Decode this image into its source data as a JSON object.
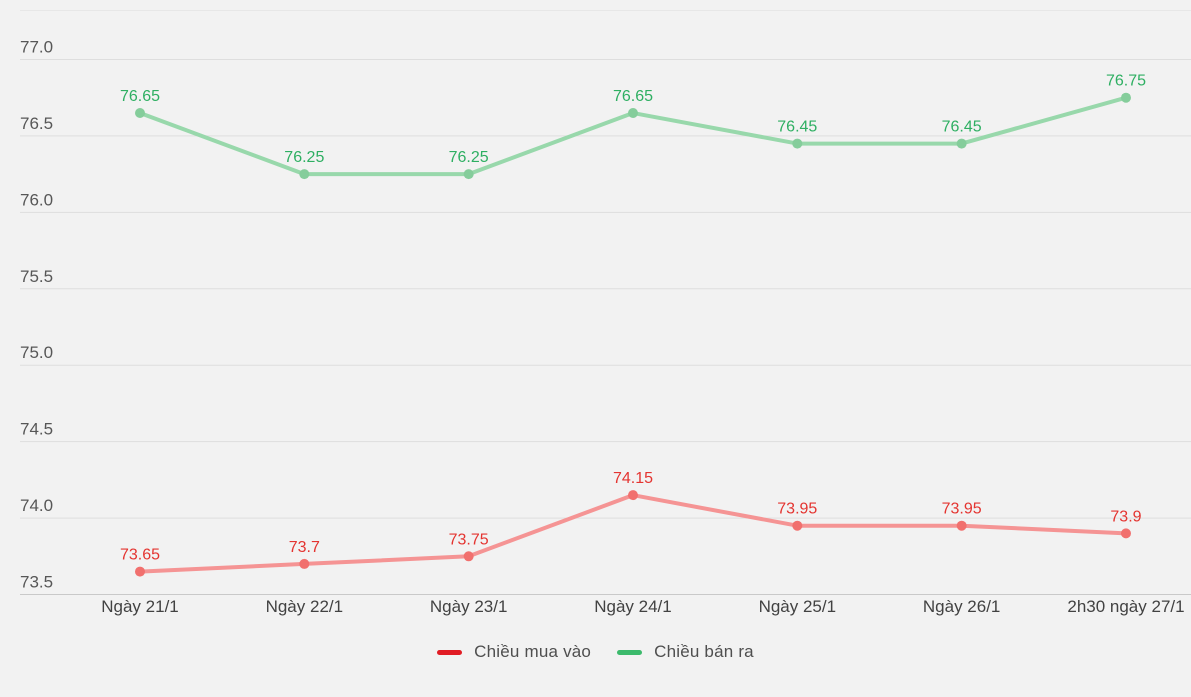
{
  "chart_data": {
    "type": "line",
    "title": "",
    "categories": [
      "Ngày 21/1",
      "Ngày 22/1",
      "Ngày 23/1",
      "Ngày 24/1",
      "Ngày 25/1",
      "Ngày 26/1",
      "2h30 ngày 27/1"
    ],
    "series": [
      {
        "name": "Chiều mua vào",
        "values": [
          73.65,
          73.7,
          73.75,
          74.15,
          73.95,
          73.95,
          73.9
        ],
        "line_color": "#f59494",
        "point_color": "#f1706e",
        "label_color": "#e43430",
        "legend_color": "#e11c24"
      },
      {
        "name": "Chiều bán ra",
        "values": [
          76.65,
          76.25,
          76.25,
          76.65,
          76.45,
          76.45,
          76.75
        ],
        "line_color": "#98d8ab",
        "point_color": "#85cd9b",
        "label_color": "#2eaf62",
        "legend_color": "#3cba6c"
      }
    ],
    "y_axis": {
      "tick_labels": [
        "77.0",
        "76.5",
        "76.0",
        "75.5",
        "75.0",
        "74.5",
        "74.0",
        "73.5"
      ],
      "min": 73.5,
      "max": 77.0
    },
    "grid": "horizontal",
    "legend_position": "bottom"
  },
  "style": {
    "background": "#f2f2f2",
    "gridline": "#dedede",
    "axis_line": "#c9c9c9",
    "top_line": "#e7e7e7",
    "y_tick_color": "#575757",
    "x_tick_color": "#424242"
  }
}
